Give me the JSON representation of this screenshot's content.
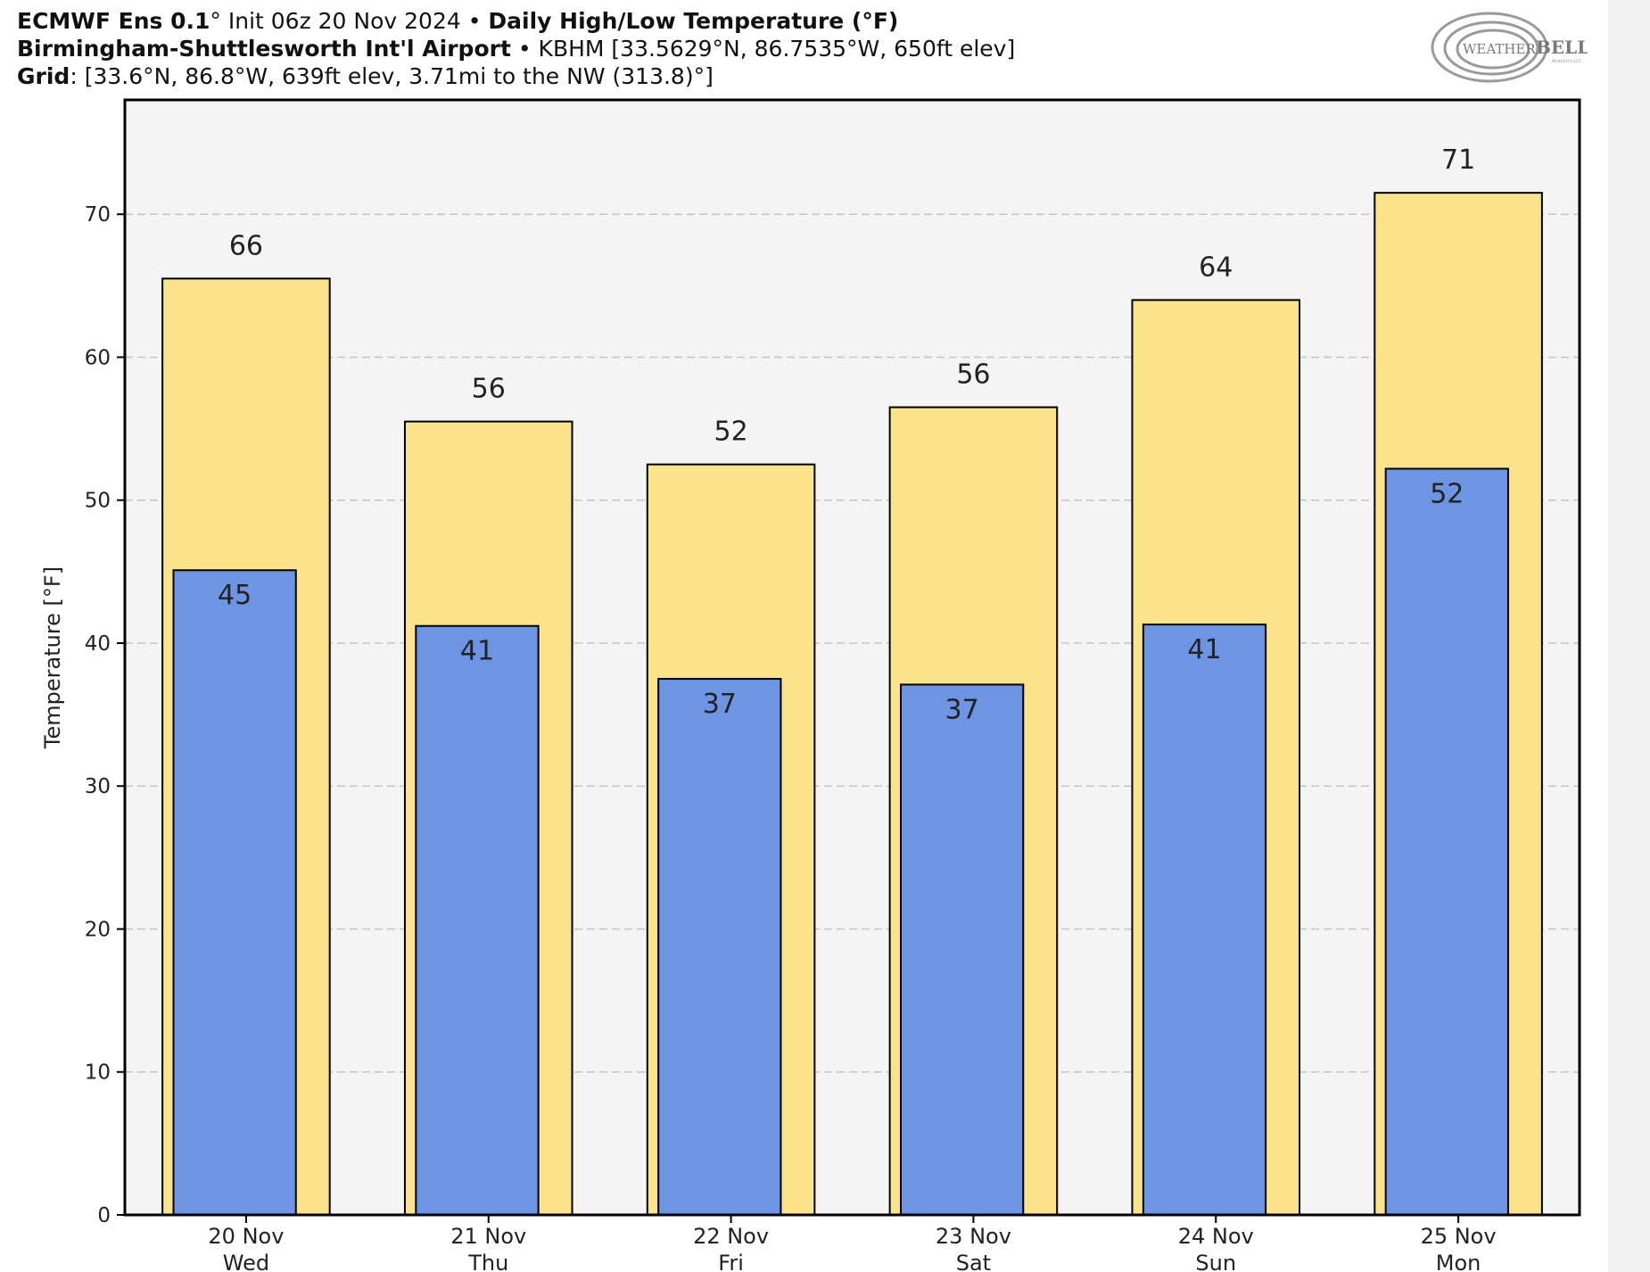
{
  "header": {
    "line1_model": "ECMWF Ens 0.1",
    "line1_model_deg": "°",
    "line1_init": " Init 06z 20 Nov 2024",
    "line1_sep": " • ",
    "line1_product": "Daily High/Low Temperature (°F)",
    "line2_station": "Birmingham-Shuttlesworth Int'l Airport",
    "line2_sep": " • ",
    "line2_detail": "KBHM [33.5629°N, 86.7535°W, 650ft elev]",
    "line3_label": "Grid",
    "line3_detail": ": [33.6°N, 86.8°W, 639ft elev, 3.71mi to the NW (313.8)°]"
  },
  "logo": {
    "text_weather": "WEATHER",
    "text_bell": "BELL",
    "text_sub": "Analytics LLC"
  },
  "colors": {
    "high_bar": "#fbe38b",
    "low_bar": "#6d95e3",
    "plot_bg": "#f4f4f4",
    "grid": "#c4c4c4",
    "axis": "#000000"
  },
  "chart_data": {
    "type": "bar",
    "title": "Daily High/Low Temperature (°F)",
    "ylabel": "Temperature [°F]",
    "ylim": [
      0,
      78
    ],
    "yticks": [
      0,
      10,
      20,
      30,
      40,
      50,
      60,
      70
    ],
    "grid": true,
    "categories": [
      {
        "date": "20 Nov",
        "day": "Wed"
      },
      {
        "date": "21 Nov",
        "day": "Thu"
      },
      {
        "date": "22 Nov",
        "day": "Fri"
      },
      {
        "date": "23 Nov",
        "day": "Sat"
      },
      {
        "date": "24 Nov",
        "day": "Sun"
      },
      {
        "date": "25 Nov",
        "day": "Mon"
      }
    ],
    "series": [
      {
        "values": [
          65.5,
          55.5,
          52.5,
          56.5,
          64.0,
          71.5
        ],
        "labels": [
          "66",
          "56",
          "52",
          "56",
          "64",
          "71"
        ]
      },
      {
        "values": [
          45.1,
          41.2,
          37.5,
          37.1,
          41.3,
          52.2
        ],
        "labels": [
          "45",
          "41",
          "37",
          "37",
          "41",
          "52"
        ]
      }
    ]
  }
}
